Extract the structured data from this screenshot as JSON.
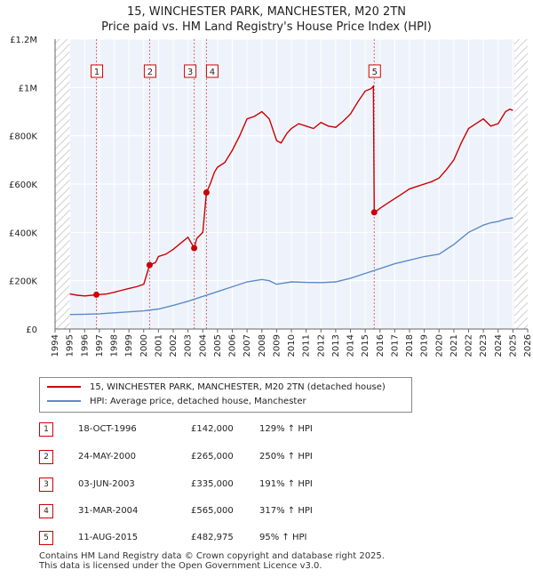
{
  "title_line1": "15, WINCHESTER PARK, MANCHESTER, M20 2TN",
  "title_line2": "Price paid vs. HM Land Registry's House Price Index (HPI)",
  "legend": {
    "property_label": "15, WINCHESTER PARK, MANCHESTER, M20 2TN (detached house)",
    "hpi_label": "HPI: Average price, detached house, Manchester",
    "property_color": "#cc0000",
    "hpi_color": "#5b8bc9"
  },
  "sales": [
    {
      "num": "1",
      "date": "18-OCT-1996",
      "price": "£142,000",
      "pct": "129% ↑ HPI"
    },
    {
      "num": "2",
      "date": "24-MAY-2000",
      "price": "£265,000",
      "pct": "250% ↑ HPI"
    },
    {
      "num": "3",
      "date": "03-JUN-2003",
      "price": "£335,000",
      "pct": "191% ↑ HPI"
    },
    {
      "num": "4",
      "date": "31-MAR-2004",
      "price": "£565,000",
      "pct": "317% ↑ HPI"
    },
    {
      "num": "5",
      "date": "11-AUG-2015",
      "price": "£482,975",
      "pct": "95% ↑ HPI"
    }
  ],
  "footer_line1": "Contains HM Land Registry data © Crown copyright and database right 2025.",
  "footer_line2": "This data is licensed under the Open Government Licence v3.0.",
  "chart_data": {
    "type": "line",
    "title": "15, WINCHESTER PARK, MANCHESTER, M20 2TN",
    "subtitle": "Price paid vs. HM Land Registry's House Price Index (HPI)",
    "xlabel": "",
    "ylabel": "",
    "xlim": [
      1994,
      2026
    ],
    "ylim": [
      0,
      1200000
    ],
    "x_ticks": [
      1994,
      1995,
      1996,
      1997,
      1998,
      1999,
      2000,
      2001,
      2002,
      2003,
      2004,
      2005,
      2006,
      2007,
      2008,
      2009,
      2010,
      2011,
      2012,
      2013,
      2014,
      2015,
      2016,
      2017,
      2018,
      2019,
      2020,
      2021,
      2022,
      2023,
      2024,
      2025,
      2026
    ],
    "y_ticks": [
      0,
      200000,
      400000,
      600000,
      800000,
      1000000,
      1200000
    ],
    "y_tick_labels": [
      "£0",
      "£200K",
      "£400K",
      "£600K",
      "£800K",
      "£1M",
      "£1.2M"
    ],
    "legend_position": "below",
    "hatched_ranges": [
      [
        1994,
        1995
      ],
      [
        2025.1,
        2026
      ]
    ],
    "series": [
      {
        "name": "15, WINCHESTER PARK, MANCHESTER, M20 2TN (detached house)",
        "color": "#cc0000",
        "points": [
          [
            1995.0,
            145000
          ],
          [
            1995.5,
            140000
          ],
          [
            1996.0,
            137000
          ],
          [
            1996.5,
            140000
          ],
          [
            1996.8,
            142000
          ],
          [
            1997.0,
            143000
          ],
          [
            1997.5,
            145000
          ],
          [
            1998.0,
            152000
          ],
          [
            1998.5,
            160000
          ],
          [
            1999.0,
            168000
          ],
          [
            1999.5,
            175000
          ],
          [
            2000.0,
            185000
          ],
          [
            2000.4,
            265000
          ],
          [
            2000.8,
            275000
          ],
          [
            2001.0,
            300000
          ],
          [
            2001.5,
            310000
          ],
          [
            2002.0,
            330000
          ],
          [
            2002.5,
            355000
          ],
          [
            2003.0,
            380000
          ],
          [
            2003.42,
            335000
          ],
          [
            2003.6,
            375000
          ],
          [
            2004.0,
            400000
          ],
          [
            2004.25,
            565000
          ],
          [
            2004.5,
            600000
          ],
          [
            2004.8,
            650000
          ],
          [
            2005.0,
            670000
          ],
          [
            2005.5,
            690000
          ],
          [
            2006.0,
            740000
          ],
          [
            2006.5,
            800000
          ],
          [
            2007.0,
            870000
          ],
          [
            2007.5,
            880000
          ],
          [
            2008.0,
            900000
          ],
          [
            2008.5,
            870000
          ],
          [
            2009.0,
            780000
          ],
          [
            2009.3,
            770000
          ],
          [
            2009.7,
            810000
          ],
          [
            2010.0,
            830000
          ],
          [
            2010.5,
            850000
          ],
          [
            2011.0,
            840000
          ],
          [
            2011.5,
            830000
          ],
          [
            2012.0,
            855000
          ],
          [
            2012.5,
            840000
          ],
          [
            2013.0,
            835000
          ],
          [
            2013.5,
            860000
          ],
          [
            2014.0,
            890000
          ],
          [
            2014.5,
            940000
          ],
          [
            2015.0,
            985000
          ],
          [
            2015.4,
            995000
          ],
          [
            2015.55,
            1005000
          ],
          [
            2015.61,
            482975
          ],
          [
            2015.8,
            490000
          ],
          [
            2016.0,
            500000
          ],
          [
            2016.5,
            520000
          ],
          [
            2017.0,
            540000
          ],
          [
            2017.5,
            560000
          ],
          [
            2018.0,
            580000
          ],
          [
            2018.5,
            590000
          ],
          [
            2019.0,
            600000
          ],
          [
            2019.5,
            610000
          ],
          [
            2020.0,
            625000
          ],
          [
            2020.5,
            660000
          ],
          [
            2021.0,
            700000
          ],
          [
            2021.5,
            770000
          ],
          [
            2022.0,
            830000
          ],
          [
            2022.5,
            850000
          ],
          [
            2023.0,
            870000
          ],
          [
            2023.5,
            840000
          ],
          [
            2024.0,
            850000
          ],
          [
            2024.5,
            900000
          ],
          [
            2024.8,
            910000
          ],
          [
            2025.0,
            905000
          ]
        ]
      },
      {
        "name": "HPI: Average price, detached house, Manchester",
        "color": "#5b8bc9",
        "points": [
          [
            1995.0,
            60000
          ],
          [
            1996.0,
            61000
          ],
          [
            1997.0,
            63000
          ],
          [
            1998.0,
            67000
          ],
          [
            1999.0,
            71000
          ],
          [
            2000.0,
            75000
          ],
          [
            2001.0,
            83000
          ],
          [
            2002.0,
            98000
          ],
          [
            2003.0,
            115000
          ],
          [
            2004.0,
            135000
          ],
          [
            2005.0,
            155000
          ],
          [
            2006.0,
            175000
          ],
          [
            2007.0,
            195000
          ],
          [
            2008.0,
            205000
          ],
          [
            2008.5,
            200000
          ],
          [
            2009.0,
            185000
          ],
          [
            2010.0,
            195000
          ],
          [
            2011.0,
            193000
          ],
          [
            2012.0,
            192000
          ],
          [
            2013.0,
            195000
          ],
          [
            2014.0,
            210000
          ],
          [
            2015.0,
            230000
          ],
          [
            2016.0,
            250000
          ],
          [
            2017.0,
            270000
          ],
          [
            2018.0,
            285000
          ],
          [
            2019.0,
            300000
          ],
          [
            2020.0,
            310000
          ],
          [
            2021.0,
            350000
          ],
          [
            2022.0,
            400000
          ],
          [
            2023.0,
            430000
          ],
          [
            2023.5,
            440000
          ],
          [
            2024.0,
            445000
          ],
          [
            2024.5,
            455000
          ],
          [
            2025.0,
            460000
          ]
        ]
      }
    ],
    "sale_markers": [
      {
        "label": "1",
        "x": 1996.8,
        "y": 142000
      },
      {
        "label": "2",
        "x": 2000.4,
        "y": 265000
      },
      {
        "label": "3",
        "x": 2003.42,
        "y": 335000
      },
      {
        "label": "4",
        "x": 2004.25,
        "y": 565000
      },
      {
        "label": "5",
        "x": 2015.61,
        "y": 482975
      }
    ]
  }
}
